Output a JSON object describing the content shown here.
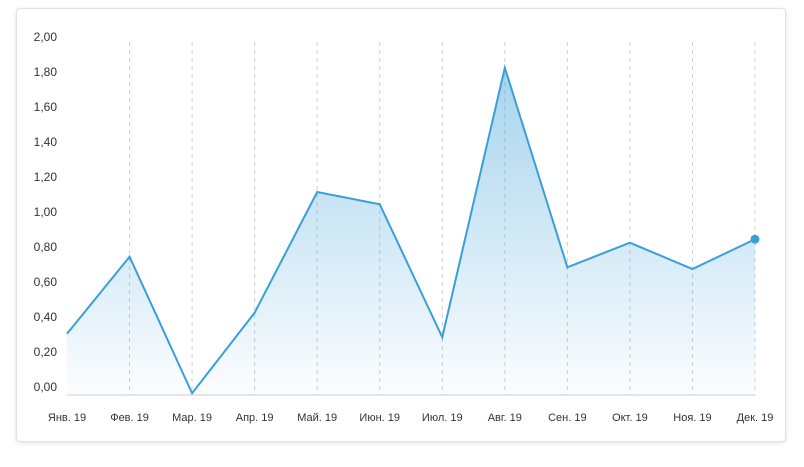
{
  "chart_data": {
    "type": "area",
    "categories": [
      "Янв. 19",
      "Фев. 19",
      "Мар. 19",
      "Апр. 19",
      "Май. 19",
      "Июн. 19",
      "Июл. 19",
      "Авг. 19",
      "Сен. 19",
      "Окт. 19",
      "Ноя. 19",
      "Дек. 19"
    ],
    "values": [
      0.31,
      0.75,
      -0.03,
      0.43,
      1.12,
      1.05,
      0.29,
      1.83,
      0.69,
      0.83,
      0.68,
      0.85
    ],
    "color": "#3a9fd8",
    "ylim": [
      0,
      2
    ],
    "yticks": [
      {
        "value": 0,
        "label": "0,00"
      },
      {
        "value": 0.2,
        "label": "0,20"
      },
      {
        "value": 0.4,
        "label": "0,40"
      },
      {
        "value": 0.6,
        "label": "0,60"
      },
      {
        "value": 0.8,
        "label": "0,80"
      },
      {
        "value": 1,
        "label": "1,00"
      },
      {
        "value": 1.2,
        "label": "1,20"
      },
      {
        "value": 1.4,
        "label": "1,40"
      },
      {
        "value": 1.6,
        "label": "1,60"
      },
      {
        "value": 1.8,
        "label": "1,80"
      },
      {
        "value": 2,
        "label": "2,00"
      }
    ],
    "grid": true
  }
}
